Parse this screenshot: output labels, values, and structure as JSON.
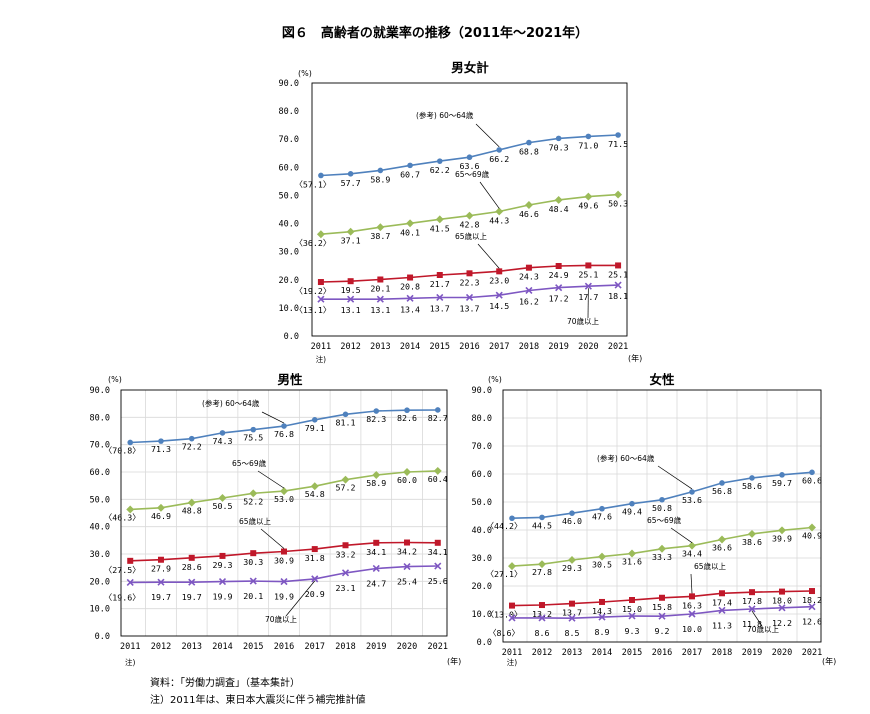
{
  "figure_title": "図６　高齢者の就業率の推移（2011年～2021年）",
  "notes": {
    "source": "資料：「労働力調査」（基本集計）",
    "note": "注）2011年は、東日本大震災に伴う補完推計値"
  },
  "colors": {
    "s6064": "#4F81BD",
    "s6569": "#9BBB59",
    "s65plus": "#C0182A",
    "s70plus": "#7E57C2",
    "frame": "#000000",
    "grid": "#D9D9D9"
  },
  "chart_data": [
    {
      "type": "line",
      "title": "男女計",
      "x": [
        "2011",
        "2012",
        "2013",
        "2014",
        "2015",
        "2016",
        "2017",
        "2018",
        "2019",
        "2020",
        "2021"
      ],
      "x_sublabel": "注)",
      "x_unit": "(年)",
      "y_unit": "(%)",
      "ylim": [
        0,
        90
      ],
      "yticks": [
        "0.0",
        "10.0",
        "20.0",
        "30.0",
        "40.0",
        "50.0",
        "60.0",
        "70.0",
        "80.0",
        "90.0"
      ],
      "grid": false,
      "series": [
        {
          "key": "s6064",
          "name": "(参考) 60～64歳",
          "values": [
            57.1,
            57.7,
            58.9,
            60.7,
            62.2,
            63.6,
            66.2,
            68.8,
            70.3,
            71.0,
            71.5
          ],
          "labels": [
            "〈57.1〉",
            "57.7",
            "58.9",
            "60.7",
            "62.2",
            "63.6",
            "66.2",
            "68.8",
            "70.3",
            "71.0",
            "71.5"
          ]
        },
        {
          "key": "s6569",
          "name": "65～69歳",
          "values": [
            36.2,
            37.1,
            38.7,
            40.1,
            41.5,
            42.8,
            44.3,
            46.6,
            48.4,
            49.6,
            50.3
          ],
          "labels": [
            "〈36.2〉",
            "37.1",
            "38.7",
            "40.1",
            "41.5",
            "42.8",
            "44.3",
            "46.6",
            "48.4",
            "49.6",
            "50.3"
          ]
        },
        {
          "key": "s65plus",
          "name": "65歳以上",
          "values": [
            19.2,
            19.5,
            20.1,
            20.8,
            21.7,
            22.3,
            23.0,
            24.3,
            24.9,
            25.1,
            25.1
          ],
          "labels": [
            "〈19.2〉",
            "19.5",
            "20.1",
            "20.8",
            "21.7",
            "22.3",
            "23.0",
            "24.3",
            "24.9",
            "25.1",
            "25.1"
          ]
        },
        {
          "key": "s70plus",
          "name": "70歳以上",
          "values": [
            13.1,
            13.1,
            13.1,
            13.4,
            13.7,
            13.7,
            14.5,
            16.2,
            17.2,
            17.7,
            18.1
          ],
          "labels": [
            "〈13.1〉",
            "13.1",
            "13.1",
            "13.4",
            "13.7",
            "13.7",
            "14.5",
            "16.2",
            "17.2",
            "17.7",
            "18.1"
          ]
        }
      ]
    },
    {
      "type": "line",
      "title": "男性",
      "x": [
        "2011",
        "2012",
        "2013",
        "2014",
        "2015",
        "2016",
        "2017",
        "2018",
        "2019",
        "2020",
        "2021"
      ],
      "x_sublabel": "注)",
      "x_unit": "(年)",
      "y_unit": "(%)",
      "ylim": [
        0,
        90
      ],
      "yticks": [
        "0.0",
        "10.0",
        "20.0",
        "30.0",
        "40.0",
        "50.0",
        "60.0",
        "70.0",
        "80.0",
        "90.0"
      ],
      "grid": true,
      "series": [
        {
          "key": "s6064",
          "name": "(参考) 60～64歳",
          "values": [
            70.8,
            71.3,
            72.2,
            74.3,
            75.5,
            76.8,
            79.1,
            81.1,
            82.3,
            82.6,
            82.7
          ],
          "labels": [
            "〈70.8〉",
            "71.3",
            "72.2",
            "74.3",
            "75.5",
            "76.8",
            "79.1",
            "81.1",
            "82.3",
            "82.6",
            "82.7"
          ]
        },
        {
          "key": "s6569",
          "name": "65～69歳",
          "values": [
            46.3,
            46.9,
            48.8,
            50.5,
            52.2,
            53.0,
            54.8,
            57.2,
            58.9,
            60.0,
            60.4
          ],
          "labels": [
            "〈46.3〉",
            "46.9",
            "48.8",
            "50.5",
            "52.2",
            "53.0",
            "54.8",
            "57.2",
            "58.9",
            "60.0",
            "60.4"
          ]
        },
        {
          "key": "s65plus",
          "name": "65歳以上",
          "values": [
            27.5,
            27.9,
            28.6,
            29.3,
            30.3,
            30.9,
            31.8,
            33.2,
            34.1,
            34.2,
            34.1
          ],
          "labels": [
            "〈27.5〉",
            "27.9",
            "28.6",
            "29.3",
            "30.3",
            "30.9",
            "31.8",
            "33.2",
            "34.1",
            "34.2",
            "34.1"
          ]
        },
        {
          "key": "s70plus",
          "name": "70歳以上",
          "values": [
            19.6,
            19.7,
            19.7,
            19.9,
            20.1,
            19.9,
            20.9,
            23.1,
            24.7,
            25.4,
            25.6
          ],
          "labels": [
            "〈19.6〉",
            "19.7",
            "19.7",
            "19.9",
            "20.1",
            "19.9",
            "20.9",
            "23.1",
            "24.7",
            "25.4",
            "25.6"
          ]
        }
      ]
    },
    {
      "type": "line",
      "title": "女性",
      "x": [
        "2011",
        "2012",
        "2013",
        "2014",
        "2015",
        "2016",
        "2017",
        "2018",
        "2019",
        "2020",
        "2021"
      ],
      "x_sublabel": "注)",
      "x_unit": "(年)",
      "y_unit": "(%)",
      "ylim": [
        0,
        90
      ],
      "yticks": [
        "0.0",
        "10.0",
        "20.0",
        "30.0",
        "40.0",
        "50.0",
        "60.0",
        "70.0",
        "80.0",
        "90.0"
      ],
      "grid": true,
      "series": [
        {
          "key": "s6064",
          "name": "(参考) 60～64歳",
          "values": [
            44.2,
            44.5,
            46.0,
            47.6,
            49.4,
            50.8,
            53.6,
            56.8,
            58.6,
            59.7,
            60.6
          ],
          "labels": [
            "〈44.2〉",
            "44.5",
            "46.0",
            "47.6",
            "49.4",
            "50.8",
            "53.6",
            "56.8",
            "58.6",
            "59.7",
            "60.6"
          ]
        },
        {
          "key": "s6569",
          "name": "65～69歳",
          "values": [
            27.1,
            27.8,
            29.3,
            30.5,
            31.6,
            33.3,
            34.4,
            36.6,
            38.6,
            39.9,
            40.9
          ],
          "labels": [
            "〈27.1〉",
            "27.8",
            "29.3",
            "30.5",
            "31.6",
            "33.3",
            "34.4",
            "36.6",
            "38.6",
            "39.9",
            "40.9"
          ]
        },
        {
          "key": "s65plus",
          "name": "65歳以上",
          "values": [
            13.0,
            13.2,
            13.7,
            14.3,
            15.0,
            15.8,
            16.3,
            17.4,
            17.8,
            18.0,
            18.2
          ],
          "labels": [
            "〈13.0〉",
            "13.2",
            "13.7",
            "14.3",
            "15.0",
            "15.8",
            "16.3",
            "17.4",
            "17.8",
            "18.0",
            "18.2"
          ]
        },
        {
          "key": "s70plus",
          "name": "70歳以上",
          "values": [
            8.6,
            8.6,
            8.5,
            8.9,
            9.3,
            9.2,
            10.0,
            11.3,
            11.8,
            12.2,
            12.6
          ],
          "labels": [
            "〈8.6〉",
            "8.6",
            "8.5",
            "8.9",
            "9.3",
            "9.2",
            "10.0",
            "11.3",
            "11.8",
            "12.2",
            "12.6"
          ]
        }
      ]
    }
  ]
}
